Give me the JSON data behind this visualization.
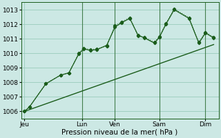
{
  "bg_color": "#cce8e4",
  "grid_color": "#99ccbb",
  "line_color": "#1a5c1a",
  "ylim": [
    1005.5,
    1013.5
  ],
  "yticks": [
    1006,
    1007,
    1008,
    1009,
    1010,
    1011,
    1012,
    1013
  ],
  "xlabel": "Pression niveau de la mer( hPa )",
  "xlabel_fontsize": 7.5,
  "tick_fontsize": 6.5,
  "xtick_labels": [
    "Jeu",
    "Lun",
    "Ven",
    "Sam",
    "Dim"
  ],
  "xtick_positions": [
    0,
    35,
    55,
    82,
    110
  ],
  "xlim": [
    -2,
    118
  ],
  "vline_x": [
    35,
    55,
    82,
    110
  ],
  "trend_x": [
    0,
    115
  ],
  "trend_y": [
    1006.0,
    1010.6
  ],
  "dotted_x": [
    0,
    3,
    13,
    22,
    27,
    33,
    36,
    40,
    44,
    50,
    55,
    59,
    64,
    69,
    73,
    79,
    82,
    86,
    91,
    100,
    106,
    110,
    115
  ],
  "dotted_y": [
    1006.0,
    1006.3,
    1007.9,
    1008.5,
    1008.65,
    1010.0,
    1010.35,
    1010.25,
    1010.3,
    1010.5,
    1011.9,
    1012.15,
    1012.45,
    1011.2,
    1011.1,
    1010.75,
    1011.15,
    1012.05,
    1013.05,
    1012.45,
    1010.75,
    1011.45,
    1011.1
  ],
  "solid_x": [
    0,
    3,
    13,
    22,
    27,
    33,
    36,
    40,
    44,
    50,
    55,
    59,
    64,
    69,
    73,
    79,
    82,
    86,
    91,
    100,
    106,
    110,
    115
  ],
  "solid_y": [
    1006.0,
    1006.3,
    1007.9,
    1008.5,
    1008.65,
    1009.95,
    1010.3,
    1010.2,
    1010.25,
    1010.55,
    1011.8,
    1012.1,
    1012.4,
    1011.25,
    1011.05,
    1010.7,
    1011.1,
    1012.0,
    1013.0,
    1012.4,
    1010.7,
    1011.4,
    1011.05
  ]
}
